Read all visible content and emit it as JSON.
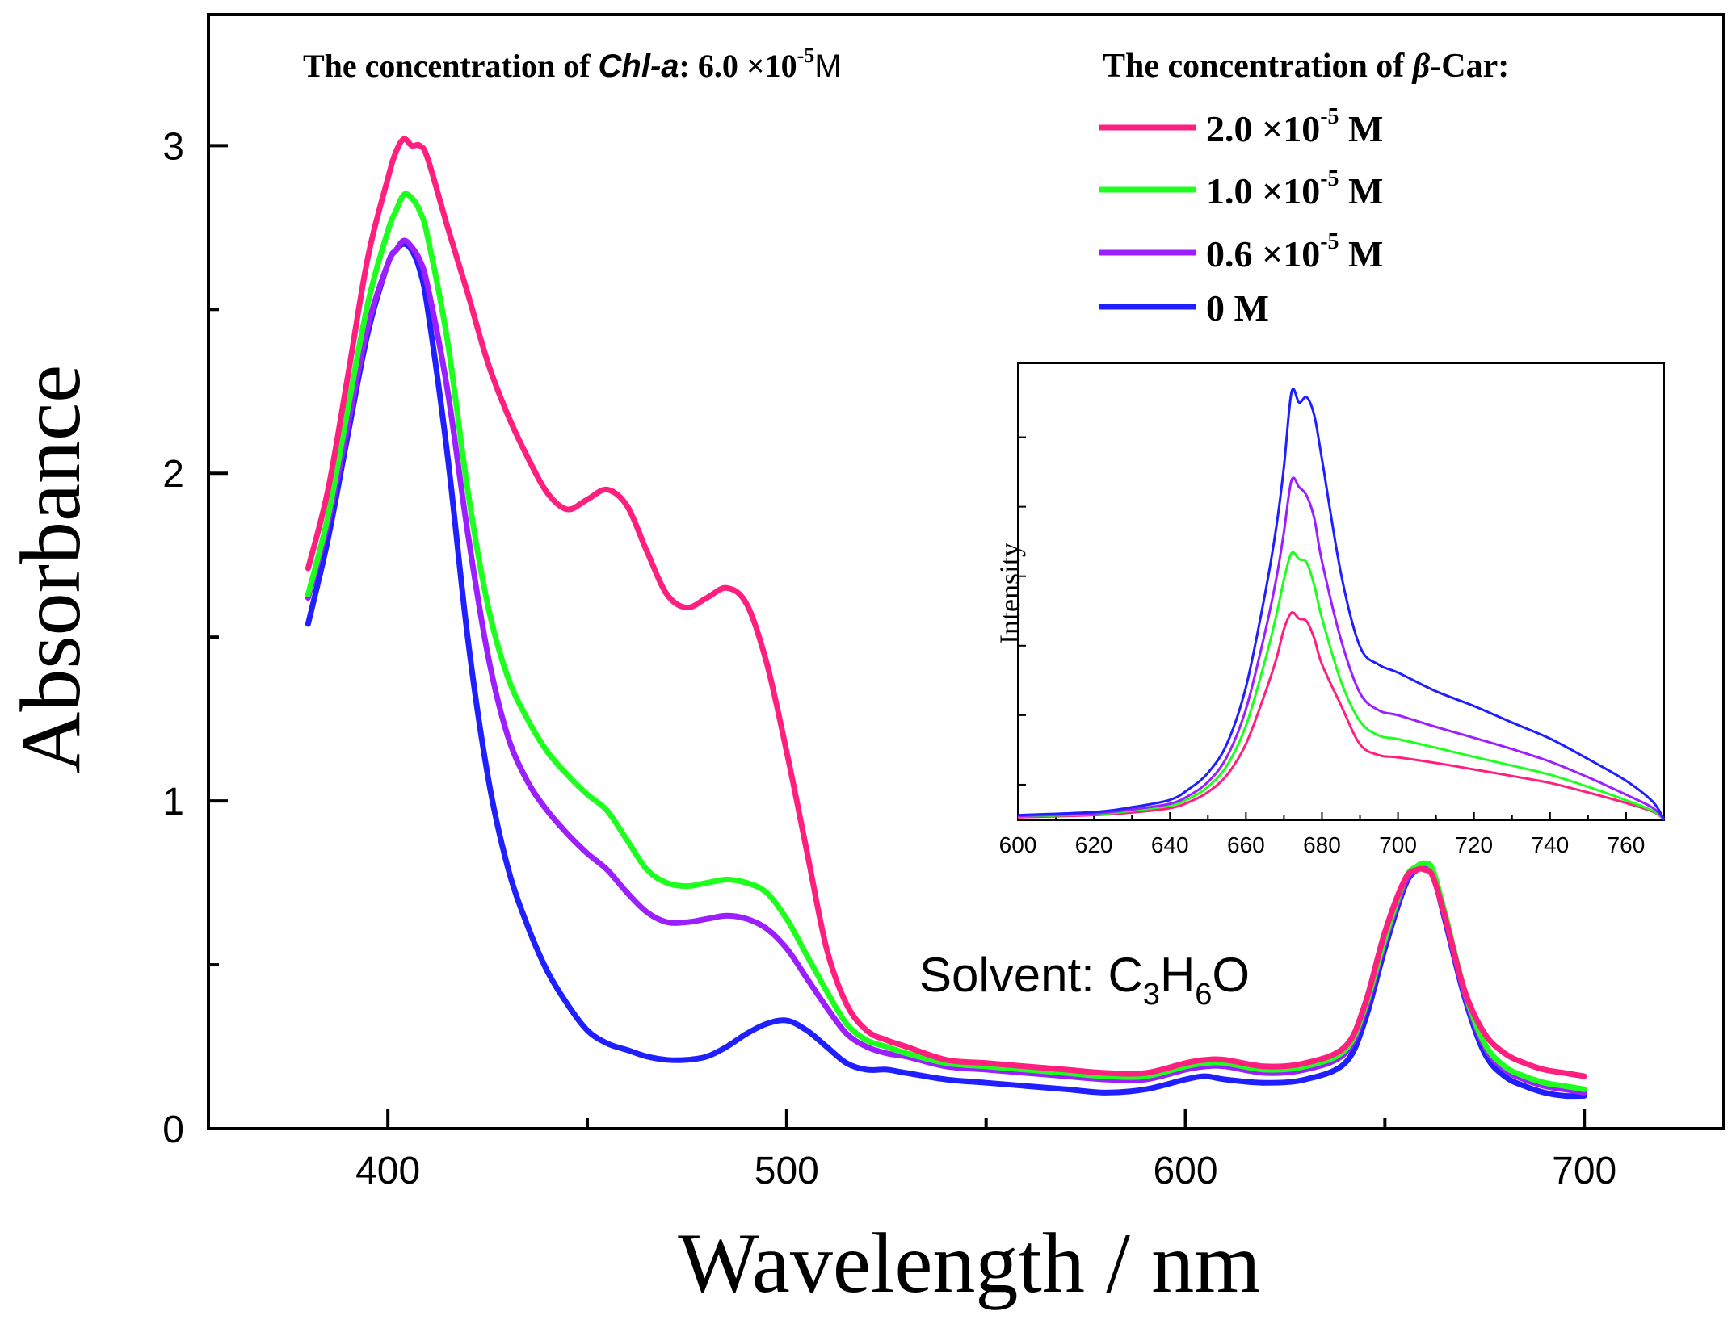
{
  "chart_data": [
    {
      "type": "line",
      "title": "",
      "xlabel": "Wavelength / nm",
      "ylabel": "Absorbance",
      "xlim": [
        355,
        735
      ],
      "ylim": [
        0,
        3.4
      ],
      "x_ticks": [
        400,
        500,
        600,
        700
      ],
      "x_tick_labels": [
        "400",
        "500",
        "600",
        "700"
      ],
      "y_ticks": [
        0,
        1,
        2,
        3
      ],
      "y_tick_labels": [
        "0",
        "1",
        "2",
        "3"
      ],
      "y_minor_ticks": [
        0.5,
        1.5,
        2.5
      ],
      "annotations": {
        "chl_prefix": "The concentration of ",
        "chl_name": "Chl-a",
        "chl_value": ": 6.0 ×10",
        "chl_exp": "-5",
        "chl_unit": "M",
        "car_prefix": "The concentration of ",
        "car_symbol": "β",
        "car_suffix": "-Car:",
        "solvent_prefix": "Solvent: C",
        "solvent_sub1": "3",
        "solvent_mid": "H",
        "solvent_sub2": "6",
        "solvent_end": "O"
      },
      "series": [
        {
          "name": "2.0 ×10-5 M",
          "label_main": "2.0 ×10",
          "label_exp": "-5",
          "label_unit": " M",
          "color": "#ff1f7f",
          "x": [
            380,
            385,
            390,
            395,
            400,
            402,
            404,
            406,
            408,
            410,
            415,
            420,
            425,
            430,
            435,
            440,
            445,
            450,
            455,
            460,
            465,
            470,
            475,
            480,
            485,
            490,
            495,
            500,
            505,
            510,
            515,
            520,
            525,
            530,
            540,
            550,
            560,
            570,
            580,
            590,
            600,
            605,
            610,
            620,
            630,
            640,
            645,
            650,
            655,
            658,
            660,
            662,
            665,
            670,
            675,
            680,
            685,
            690,
            695,
            700
          ],
          "y": [
            1.71,
            1.95,
            2.3,
            2.66,
            2.9,
            2.98,
            3.02,
            3.0,
            3.0,
            2.96,
            2.75,
            2.55,
            2.34,
            2.18,
            2.05,
            1.94,
            1.89,
            1.92,
            1.95,
            1.9,
            1.76,
            1.63,
            1.59,
            1.62,
            1.65,
            1.6,
            1.42,
            1.15,
            0.85,
            0.55,
            0.38,
            0.3,
            0.27,
            0.25,
            0.21,
            0.2,
            0.19,
            0.18,
            0.17,
            0.17,
            0.2,
            0.21,
            0.21,
            0.19,
            0.2,
            0.25,
            0.38,
            0.6,
            0.76,
            0.79,
            0.79,
            0.77,
            0.65,
            0.42,
            0.29,
            0.23,
            0.2,
            0.18,
            0.17,
            0.16
          ]
        },
        {
          "name": "1.0 ×10-5 M",
          "label_main": "1.0 ×10",
          "label_exp": "-5",
          "label_unit": " M",
          "color": "#1fff1f",
          "x": [
            380,
            385,
            390,
            395,
            400,
            402,
            404,
            406,
            408,
            410,
            415,
            420,
            425,
            430,
            435,
            440,
            445,
            450,
            455,
            460,
            465,
            470,
            475,
            480,
            485,
            490,
            495,
            500,
            505,
            510,
            515,
            520,
            525,
            530,
            540,
            550,
            560,
            570,
            580,
            590,
            600,
            605,
            610,
            620,
            630,
            640,
            645,
            650,
            655,
            658,
            660,
            662,
            665,
            670,
            675,
            680,
            685,
            690,
            695,
            700
          ],
          "y": [
            1.63,
            1.87,
            2.2,
            2.52,
            2.74,
            2.8,
            2.85,
            2.84,
            2.8,
            2.72,
            2.4,
            1.95,
            1.6,
            1.38,
            1.25,
            1.15,
            1.08,
            1.02,
            0.97,
            0.88,
            0.79,
            0.75,
            0.74,
            0.75,
            0.76,
            0.75,
            0.72,
            0.64,
            0.53,
            0.42,
            0.32,
            0.27,
            0.25,
            0.23,
            0.2,
            0.19,
            0.18,
            0.17,
            0.16,
            0.16,
            0.19,
            0.2,
            0.2,
            0.18,
            0.19,
            0.24,
            0.37,
            0.58,
            0.76,
            0.8,
            0.81,
            0.79,
            0.66,
            0.42,
            0.26,
            0.19,
            0.16,
            0.14,
            0.13,
            0.12
          ]
        },
        {
          "name": "0.6 ×10-5 M",
          "label_main": "0.6 ×10",
          "label_exp": "-5",
          "label_unit": " M",
          "color": "#9b1fff",
          "x": [
            380,
            385,
            390,
            395,
            400,
            402,
            404,
            406,
            408,
            410,
            415,
            420,
            425,
            430,
            435,
            440,
            445,
            450,
            455,
            460,
            465,
            470,
            475,
            480,
            485,
            490,
            495,
            500,
            505,
            510,
            515,
            520,
            525,
            530,
            540,
            550,
            560,
            570,
            580,
            590,
            600,
            605,
            610,
            620,
            630,
            640,
            645,
            650,
            655,
            658,
            660,
            662,
            665,
            670,
            675,
            680,
            685,
            690,
            695,
            700
          ],
          "y": [
            1.62,
            1.85,
            2.15,
            2.45,
            2.64,
            2.68,
            2.71,
            2.69,
            2.65,
            2.57,
            2.25,
            1.82,
            1.45,
            1.2,
            1.06,
            0.97,
            0.9,
            0.84,
            0.79,
            0.72,
            0.66,
            0.63,
            0.63,
            0.64,
            0.65,
            0.64,
            0.61,
            0.55,
            0.46,
            0.37,
            0.29,
            0.25,
            0.23,
            0.22,
            0.19,
            0.18,
            0.17,
            0.16,
            0.15,
            0.15,
            0.18,
            0.19,
            0.19,
            0.17,
            0.18,
            0.23,
            0.36,
            0.57,
            0.75,
            0.79,
            0.8,
            0.78,
            0.65,
            0.41,
            0.25,
            0.18,
            0.15,
            0.13,
            0.12,
            0.11
          ]
        },
        {
          "name": "0 M",
          "label_main": "0 M",
          "label_exp": "",
          "label_unit": "",
          "color": "#1f1fff",
          "x": [
            380,
            385,
            390,
            395,
            400,
            402,
            404,
            406,
            408,
            410,
            415,
            420,
            425,
            430,
            435,
            440,
            445,
            450,
            455,
            460,
            465,
            470,
            475,
            480,
            485,
            490,
            495,
            500,
            505,
            510,
            515,
            520,
            525,
            530,
            540,
            550,
            560,
            570,
            580,
            590,
            600,
            605,
            610,
            620,
            630,
            640,
            645,
            650,
            655,
            658,
            660,
            662,
            665,
            670,
            675,
            680,
            685,
            690,
            695,
            700
          ],
          "y": [
            1.54,
            1.8,
            2.12,
            2.43,
            2.64,
            2.68,
            2.7,
            2.68,
            2.62,
            2.5,
            2.05,
            1.5,
            1.08,
            0.8,
            0.62,
            0.48,
            0.38,
            0.3,
            0.26,
            0.24,
            0.22,
            0.21,
            0.21,
            0.22,
            0.25,
            0.29,
            0.32,
            0.33,
            0.3,
            0.25,
            0.2,
            0.18,
            0.18,
            0.17,
            0.15,
            0.14,
            0.13,
            0.12,
            0.11,
            0.12,
            0.15,
            0.16,
            0.15,
            0.14,
            0.15,
            0.2,
            0.33,
            0.55,
            0.74,
            0.79,
            0.8,
            0.78,
            0.64,
            0.4,
            0.23,
            0.16,
            0.13,
            0.11,
            0.1,
            0.1
          ]
        }
      ]
    },
    {
      "type": "line",
      "title": "inset",
      "xlabel": "",
      "ylabel": "Intensity",
      "xlim": [
        600,
        770
      ],
      "ylim": [
        0,
        100
      ],
      "x_ticks": [
        600,
        620,
        640,
        660,
        680,
        700,
        720,
        740,
        760
      ],
      "x_tick_labels": [
        "600",
        "620",
        "640",
        "660",
        "680",
        "700",
        "720",
        "740",
        "760"
      ],
      "series": [
        {
          "name": "2.0 ×10-5 M",
          "color": "#ff1f7f",
          "x": [
            600,
            620,
            630,
            640,
            645,
            650,
            655,
            660,
            665,
            668,
            670,
            672,
            674,
            676,
            678,
            680,
            685,
            690,
            695,
            700,
            710,
            720,
            730,
            740,
            750,
            760,
            767,
            770
          ],
          "y": [
            0.5,
            1,
            1.6,
            2.6,
            4,
            6.3,
            10.2,
            17.4,
            29,
            37,
            43.8,
            47.6,
            46.2,
            45.6,
            41.6,
            35.7,
            26.3,
            17.3,
            14.8,
            14.3,
            13,
            11.5,
            10,
            8.4,
            6.2,
            3.8,
            1.8,
            0
          ]
        },
        {
          "name": "1.0 ×10-5 M",
          "color": "#1fff1f",
          "x": [
            600,
            620,
            630,
            640,
            645,
            650,
            655,
            660,
            665,
            668,
            670,
            672,
            674,
            676,
            678,
            680,
            685,
            690,
            695,
            700,
            710,
            720,
            730,
            740,
            750,
            760,
            767,
            770
          ],
          "y": [
            0.7,
            1.2,
            2,
            3.2,
            4.8,
            7.5,
            12.4,
            21.6,
            36.5,
            47,
            55.2,
            61.3,
            59.9,
            59.1,
            53.8,
            46.3,
            31.8,
            22.6,
            19.3,
            18.5,
            16.5,
            14.4,
            12.4,
            10.3,
            7.5,
            4.4,
            2,
            0
          ]
        },
        {
          "name": "0.6 ×10-5 M",
          "color": "#9b1fff",
          "x": [
            600,
            620,
            630,
            640,
            645,
            650,
            655,
            660,
            665,
            668,
            670,
            672,
            674,
            676,
            678,
            680,
            685,
            690,
            695,
            700,
            710,
            720,
            730,
            740,
            750,
            760,
            767,
            770
          ],
          "y": [
            0.8,
            1.4,
            2.3,
            3.6,
            5.5,
            8.6,
            14.4,
            25.4,
            43,
            55.5,
            66.2,
            78.1,
            76.5,
            74.5,
            69.2,
            59.4,
            41.4,
            29.1,
            25.1,
            24,
            21.3,
            18.8,
            16.2,
            13.3,
            9.7,
            5.7,
            2.7,
            0
          ]
        },
        {
          "name": "0 M",
          "color": "#1f1fff",
          "x": [
            600,
            620,
            630,
            640,
            645,
            650,
            655,
            660,
            665,
            668,
            670,
            672,
            674,
            676,
            678,
            680,
            685,
            690,
            695,
            700,
            710,
            720,
            730,
            740,
            750,
            760,
            767,
            770
          ],
          "y": [
            1,
            1.7,
            2.8,
            4.5,
            7,
            10.7,
            17.4,
            30.5,
            51.8,
            67.4,
            81.2,
            98.4,
            96,
            97.2,
            92.9,
            82.9,
            56.6,
            39.8,
            35.6,
            33.8,
            29.5,
            26.1,
            22.3,
            18.6,
            13.9,
            8.9,
            4.1,
            0
          ]
        }
      ]
    }
  ]
}
